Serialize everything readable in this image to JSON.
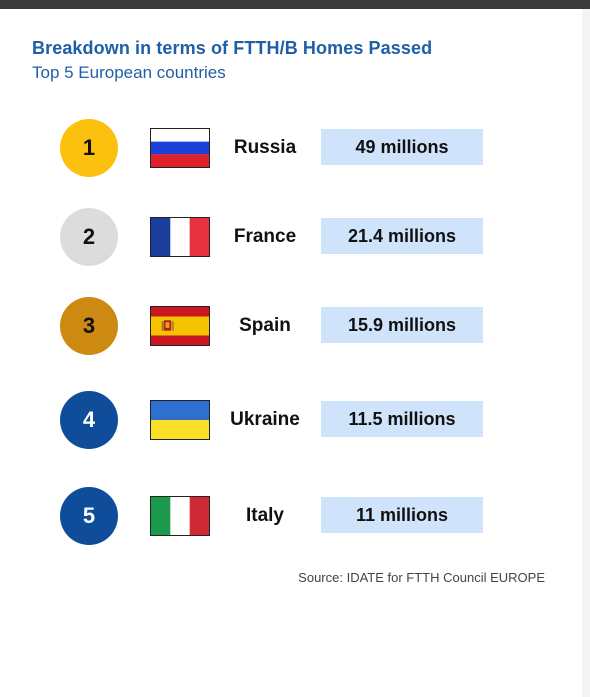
{
  "chart_data": {
    "type": "table",
    "title": "Breakdown in terms of FTTH/B Homes Passed",
    "subtitle": "Top 5 European countries",
    "rows": [
      {
        "rank": "1",
        "country": "Russia",
        "value": 49,
        "value_label": "49 millions",
        "medal_color": "#fcc10f",
        "medal_text_color": "#111111",
        "flag_icon": "russia-flag-icon"
      },
      {
        "rank": "2",
        "country": "France",
        "value": 21.4,
        "value_label": "21.4 millions",
        "medal_color": "#dcdcdc",
        "medal_text_color": "#111111",
        "flag_icon": "france-flag-icon"
      },
      {
        "rank": "3",
        "country": "Spain",
        "value": 15.9,
        "value_label": "15.9 millions",
        "medal_color": "#cd8a12",
        "medal_text_color": "#111111",
        "flag_icon": "spain-flag-icon"
      },
      {
        "rank": "4",
        "country": "Ukraine",
        "value": 11.5,
        "value_label": "11.5 millions",
        "medal_color": "#0f4c99",
        "medal_text_color": "#ffffff",
        "flag_icon": "ukraine-flag-icon"
      },
      {
        "rank": "5",
        "country": "Italy",
        "value": 11,
        "value_label": "11 millions",
        "medal_color": "#0f4c99",
        "medal_text_color": "#ffffff",
        "flag_icon": "italy-flag-icon"
      }
    ],
    "source": "Source: IDATE for FTTH Council EUROPE"
  },
  "colors": {
    "title": "#1f5fa8",
    "value_box": "#cfe3fb"
  }
}
